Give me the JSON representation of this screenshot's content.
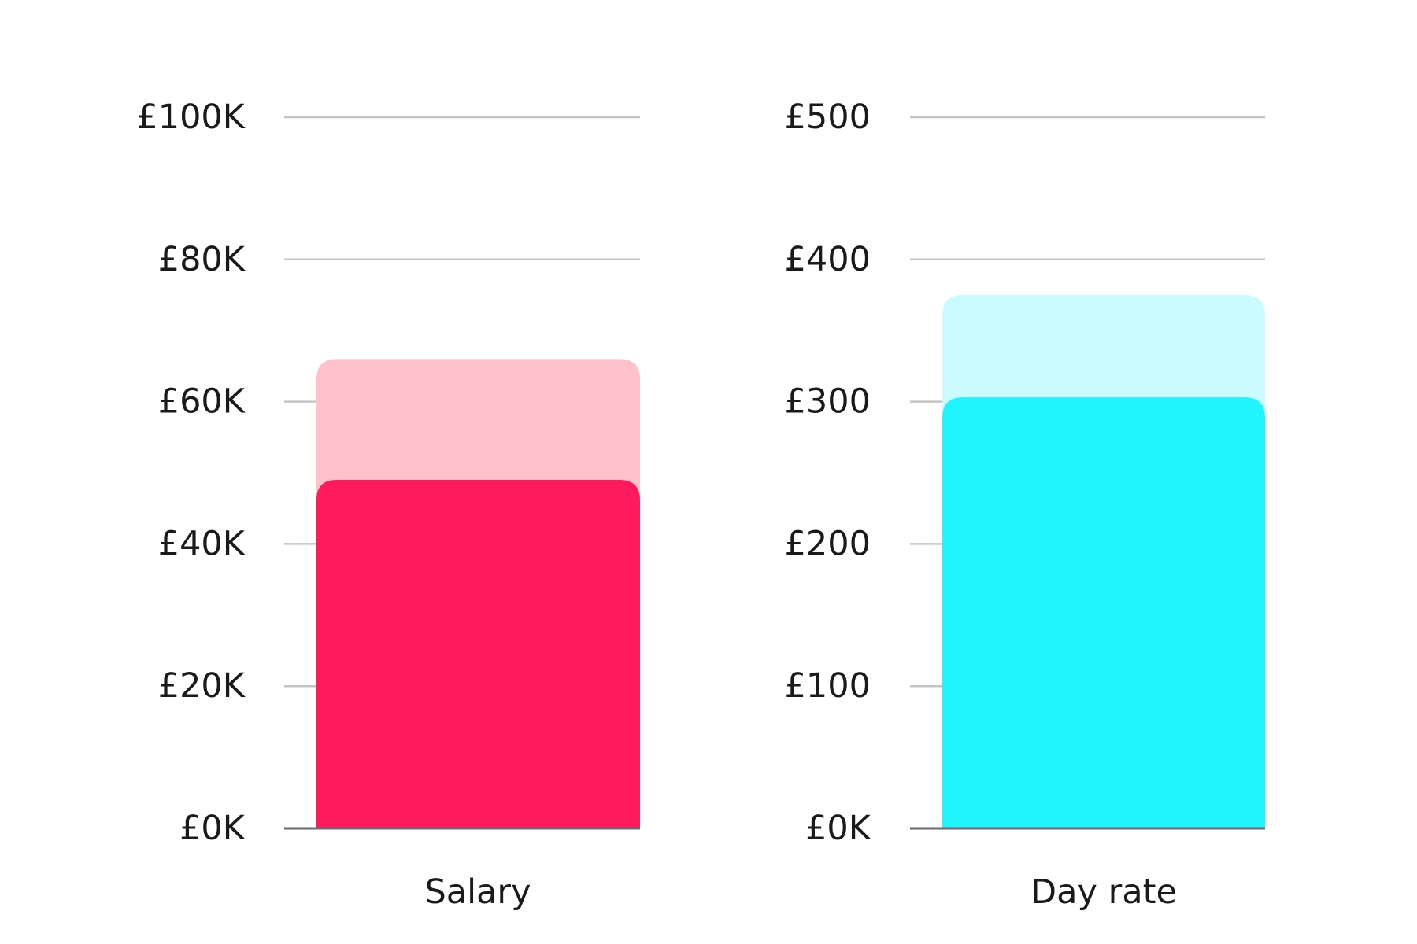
{
  "chart_data": [
    {
      "type": "bar",
      "categories": [
        "Salary"
      ],
      "series": [
        {
          "values": [
            66000
          ],
          "color": "#FFC2CD"
        },
        {
          "values": [
            49000
          ],
          "color": "#FF1A5B"
        }
      ],
      "ylim": [
        0,
        100000
      ],
      "yticks": [
        0,
        20000,
        40000,
        60000,
        80000,
        100000
      ],
      "ytick_labels": [
        "£0K",
        "£20K",
        "£40K",
        "£60K",
        "£80K",
        "£100K"
      ],
      "grid": true
    },
    {
      "type": "bar",
      "categories": [
        "Day rate"
      ],
      "series": [
        {
          "values": [
            375
          ],
          "color": "#C9FBFF"
        },
        {
          "values": [
            303
          ],
          "color": "#1FF4FF"
        }
      ],
      "ylim": [
        0,
        500
      ],
      "yticks": [
        0,
        100,
        200,
        300,
        400,
        500
      ],
      "ytick_labels": [
        "£0K",
        "£100",
        "£200",
        "£300",
        "£400",
        "£500"
      ],
      "grid": true
    }
  ]
}
